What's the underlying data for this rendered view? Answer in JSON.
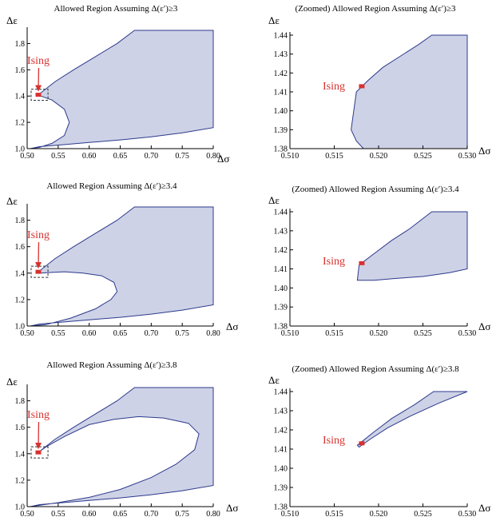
{
  "figure_style": {
    "region_fill": "#cdd2e6",
    "region_stroke": "#2e3a8c",
    "ising_color": "#d8312f",
    "axis_color": "#000000"
  },
  "chart_data": [
    {
      "type": "area",
      "title": "Allowed Region Assuming Δ(ε′)≥3",
      "xlabel": "Δσ",
      "ylabel": "Δε",
      "xlim": [
        0.5,
        0.8
      ],
      "ylim": [
        1.0,
        1.9
      ],
      "xticks": [
        "0.50",
        "0.55",
        "0.60",
        "0.65",
        "0.70",
        "0.75",
        "0.80"
      ],
      "yticks": [
        "1.0",
        "1.2",
        "1.4",
        "1.6",
        "1.8"
      ],
      "xtick_values": [
        0.5,
        0.55,
        0.6,
        0.65,
        0.7,
        0.75,
        0.8
      ],
      "ytick_values": [
        1.0,
        1.2,
        1.4,
        1.6,
        1.8
      ],
      "region": [
        [
          0.518,
          1.41
        ],
        [
          0.545,
          1.51
        ],
        [
          0.575,
          1.6
        ],
        [
          0.61,
          1.7
        ],
        [
          0.645,
          1.8
        ],
        [
          0.673,
          1.9
        ],
        [
          0.8,
          1.9
        ],
        [
          0.8,
          1.16
        ],
        [
          0.75,
          1.12
        ],
        [
          0.7,
          1.09
        ],
        [
          0.65,
          1.066
        ],
        [
          0.6,
          1.047
        ],
        [
          0.55,
          1.027
        ],
        [
          0.52,
          1.015
        ],
        [
          0.505,
          1.0
        ],
        [
          0.52,
          1.01
        ],
        [
          0.54,
          1.04
        ],
        [
          0.56,
          1.1
        ],
        [
          0.568,
          1.2
        ],
        [
          0.56,
          1.3
        ],
        [
          0.54,
          1.37
        ],
        [
          0.522,
          1.4
        ]
      ],
      "ising_label": "Ising",
      "ising_point": [
        0.518,
        1.41
      ],
      "zoom_box": [
        [
          0.509,
          1.38
        ],
        [
          0.531,
          1.44
        ]
      ]
    },
    {
      "type": "area",
      "title": "(Zoomed) Allowed Region Assuming Δ(ε′)≥3",
      "xlabel": "Δσ",
      "ylabel": "Δε",
      "xlim": [
        0.51,
        0.53
      ],
      "ylim": [
        1.38,
        1.44
      ],
      "xticks": [
        "0.510",
        "0.515",
        "0.520",
        "0.525",
        "0.530"
      ],
      "yticks": [
        "1.38",
        "1.39",
        "1.40",
        "1.41",
        "1.42",
        "1.43",
        "1.44"
      ],
      "xtick_values": [
        0.51,
        0.515,
        0.52,
        0.525,
        0.53
      ],
      "ytick_values": [
        1.38,
        1.39,
        1.4,
        1.41,
        1.42,
        1.43,
        1.44
      ],
      "region": [
        [
          0.5175,
          1.41
        ],
        [
          0.5188,
          1.416
        ],
        [
          0.5205,
          1.423
        ],
        [
          0.5225,
          1.429
        ],
        [
          0.5245,
          1.435
        ],
        [
          0.526,
          1.44
        ],
        [
          0.53,
          1.44
        ],
        [
          0.53,
          1.38
        ],
        [
          0.5183,
          1.38
        ],
        [
          0.5175,
          1.384
        ],
        [
          0.5169,
          1.39
        ],
        [
          0.5172,
          1.4
        ]
      ],
      "ising_label": "Ising",
      "ising_point": [
        0.5181,
        1.413
      ]
    },
    {
      "type": "area",
      "title": "Allowed Region Assuming Δ(ε′)≥3.4",
      "xlabel": "Δσ",
      "ylabel": "Δε",
      "xlim": [
        0.5,
        0.8
      ],
      "ylim": [
        1.0,
        1.9
      ],
      "xticks": [
        "0.50",
        "0.55",
        "0.60",
        "0.65",
        "0.70",
        "0.75",
        "0.80"
      ],
      "yticks": [
        "1.0",
        "1.2",
        "1.4",
        "1.6",
        "1.8"
      ],
      "xtick_values": [
        0.5,
        0.55,
        0.6,
        0.65,
        0.7,
        0.75,
        0.8
      ],
      "ytick_values": [
        1.0,
        1.2,
        1.4,
        1.6,
        1.8
      ],
      "region": [
        [
          0.518,
          1.41
        ],
        [
          0.545,
          1.51
        ],
        [
          0.575,
          1.6
        ],
        [
          0.61,
          1.7
        ],
        [
          0.645,
          1.8
        ],
        [
          0.673,
          1.9
        ],
        [
          0.8,
          1.9
        ],
        [
          0.8,
          1.16
        ],
        [
          0.75,
          1.12
        ],
        [
          0.7,
          1.09
        ],
        [
          0.65,
          1.066
        ],
        [
          0.6,
          1.047
        ],
        [
          0.55,
          1.027
        ],
        [
          0.52,
          1.015
        ],
        [
          0.505,
          1.0
        ],
        [
          0.53,
          1.01
        ],
        [
          0.57,
          1.06
        ],
        [
          0.61,
          1.13
        ],
        [
          0.635,
          1.2
        ],
        [
          0.645,
          1.26
        ],
        [
          0.64,
          1.33
        ],
        [
          0.62,
          1.38
        ],
        [
          0.59,
          1.4
        ],
        [
          0.56,
          1.41
        ],
        [
          0.54,
          1.405
        ],
        [
          0.522,
          1.4
        ]
      ],
      "ising_label": "Ising",
      "ising_point": [
        0.518,
        1.41
      ],
      "zoom_box": [
        [
          0.509,
          1.38
        ],
        [
          0.531,
          1.44
        ]
      ]
    },
    {
      "type": "area",
      "title": "(Zoomed) Allowed Region Assuming Δ(ε′)≥3.4",
      "xlabel": "Δσ",
      "ylabel": "Δε",
      "xlim": [
        0.51,
        0.53
      ],
      "ylim": [
        1.38,
        1.44
      ],
      "xticks": [
        "0.510",
        "0.515",
        "0.520",
        "0.525",
        "0.530"
      ],
      "yticks": [
        "1.38",
        "1.39",
        "1.40",
        "1.41",
        "1.42",
        "1.43",
        "1.44"
      ],
      "xtick_values": [
        0.51,
        0.515,
        0.52,
        0.525,
        0.53
      ],
      "ytick_values": [
        1.38,
        1.39,
        1.4,
        1.41,
        1.42,
        1.43,
        1.44
      ],
      "region": [
        [
          0.5178,
          1.412
        ],
        [
          0.5195,
          1.418
        ],
        [
          0.5215,
          1.425
        ],
        [
          0.5235,
          1.431
        ],
        [
          0.526,
          1.44
        ],
        [
          0.53,
          1.44
        ],
        [
          0.53,
          1.41
        ],
        [
          0.528,
          1.408
        ],
        [
          0.525,
          1.406
        ],
        [
          0.522,
          1.405
        ],
        [
          0.5195,
          1.404
        ],
        [
          0.5176,
          1.404
        ]
      ],
      "ising_label": "Ising",
      "ising_point": [
        0.5181,
        1.413
      ]
    },
    {
      "type": "area",
      "title": "Allowed Region Assuming Δ(ε′)≥3.8",
      "xlabel": "Δσ",
      "ylabel": "Δε",
      "xlim": [
        0.5,
        0.8
      ],
      "ylim": [
        1.0,
        1.9
      ],
      "xticks": [
        "0.50",
        "0.55",
        "0.60",
        "0.65",
        "0.70",
        "0.75",
        "0.80"
      ],
      "yticks": [
        "1.0",
        "1.2",
        "1.4",
        "1.6",
        "1.8"
      ],
      "xtick_values": [
        0.5,
        0.55,
        0.6,
        0.65,
        0.7,
        0.75,
        0.8
      ],
      "ytick_values": [
        1.0,
        1.2,
        1.4,
        1.6,
        1.8
      ],
      "region": [
        [
          0.518,
          1.41
        ],
        [
          0.545,
          1.51
        ],
        [
          0.575,
          1.6
        ],
        [
          0.61,
          1.7
        ],
        [
          0.645,
          1.8
        ],
        [
          0.673,
          1.9
        ],
        [
          0.8,
          1.9
        ],
        [
          0.8,
          1.16
        ],
        [
          0.75,
          1.12
        ],
        [
          0.7,
          1.09
        ],
        [
          0.65,
          1.066
        ],
        [
          0.6,
          1.047
        ],
        [
          0.55,
          1.027
        ],
        [
          0.52,
          1.015
        ],
        [
          0.505,
          1.0
        ],
        [
          0.55,
          1.03
        ],
        [
          0.6,
          1.07
        ],
        [
          0.65,
          1.13
        ],
        [
          0.7,
          1.22
        ],
        [
          0.74,
          1.32
        ],
        [
          0.77,
          1.43
        ],
        [
          0.777,
          1.55
        ],
        [
          0.76,
          1.63
        ],
        [
          0.72,
          1.67
        ],
        [
          0.68,
          1.68
        ],
        [
          0.64,
          1.66
        ],
        [
          0.6,
          1.62
        ],
        [
          0.56,
          1.53
        ],
        [
          0.53,
          1.45
        ]
      ],
      "ising_label": "Ising",
      "ising_point": [
        0.518,
        1.41
      ],
      "zoom_box": [
        [
          0.509,
          1.38
        ],
        [
          0.531,
          1.44
        ]
      ]
    },
    {
      "type": "area",
      "title": "(Zoomed) Allowed Region Assuming Δ(ε′)≥3.8",
      "xlabel": "Δσ",
      "ylabel": "Δε",
      "xlim": [
        0.51,
        0.53
      ],
      "ylim": [
        1.38,
        1.44
      ],
      "xticks": [
        "0.510",
        "0.515",
        "0.520",
        "0.525",
        "0.530"
      ],
      "yticks": [
        "1.38",
        "1.39",
        "1.40",
        "1.41",
        "1.42",
        "1.43",
        "1.44"
      ],
      "xtick_values": [
        0.51,
        0.515,
        0.52,
        0.525,
        0.53
      ],
      "ytick_values": [
        1.38,
        1.39,
        1.4,
        1.41,
        1.42,
        1.43,
        1.44
      ],
      "region": [
        [
          0.5176,
          1.412
        ],
        [
          0.5195,
          1.419
        ],
        [
          0.5215,
          1.426
        ],
        [
          0.524,
          1.433
        ],
        [
          0.5262,
          1.44
        ],
        [
          0.53,
          1.44
        ],
        [
          0.5268,
          1.434
        ],
        [
          0.5235,
          1.427
        ],
        [
          0.521,
          1.421
        ],
        [
          0.519,
          1.415
        ],
        [
          0.5178,
          1.411
        ]
      ],
      "ising_label": "Ising",
      "ising_point": [
        0.5181,
        1.413
      ]
    }
  ]
}
